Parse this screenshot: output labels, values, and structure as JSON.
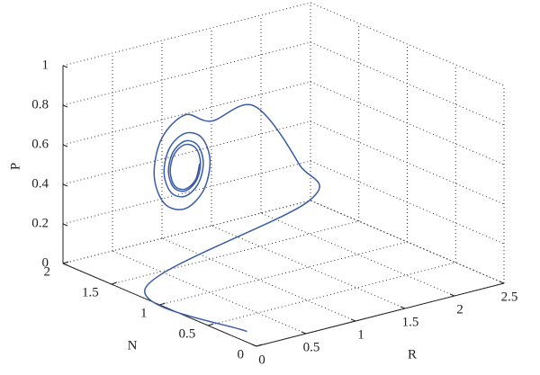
{
  "chart_data": {
    "type": "line3d",
    "xlabel": "R",
    "ylabel": "N",
    "zlabel": "P",
    "xlim": [
      0,
      2.5
    ],
    "xticks": [
      0,
      0.5,
      1,
      1.5,
      2,
      2.5
    ],
    "ylim": [
      0,
      2
    ],
    "yticks": [
      0,
      0.5,
      1,
      1.5,
      2
    ],
    "zlim": [
      0,
      1
    ],
    "zticks": [
      0,
      0.2,
      0.4,
      0.6,
      0.8,
      1
    ],
    "grid": true,
    "color": "#3a5ba8",
    "x": [
      0.1,
      0.1,
      1.75,
      1.65,
      1.2,
      0.766,
      0.5,
      0.265,
      0.188,
      0.291,
      0.5,
      0.687,
      0.752,
      0.67,
      0.5,
      0.344,
      0.288,
      0.356,
      0.5,
      0.633,
      0.684,
      0.627,
      0.5,
      0.378,
      0.332,
      0.384,
      0.5,
      0.612,
      0.656,
      0.609,
      0.5,
      0.393,
      0.35,
      0.394,
      0.5,
      0.605,
      0.648
    ],
    "y": [
      0.2,
      1.25,
      1.25,
      1.25,
      1.25,
      1.25,
      1.25,
      1.25,
      1.25,
      1.25,
      1.25,
      1.25,
      1.25,
      1.25,
      1.25,
      1.25,
      1.25,
      1.25,
      1.25,
      1.25,
      1.25,
      1.25,
      1.25,
      1.25,
      1.25,
      1.25,
      1.25,
      1.25,
      1.25,
      1.25,
      1.25,
      1.25,
      1.25,
      1.25,
      1.25,
      1.25,
      1.25
    ],
    "z": [
      0.02,
      0.02,
      0.25,
      0.45,
      0.8,
      0.779,
      0.844,
      0.756,
      0.58,
      0.423,
      0.37,
      0.44,
      0.58,
      0.707,
      0.751,
      0.697,
      0.58,
      0.472,
      0.433,
      0.48,
      0.58,
      0.675,
      0.712,
      0.671,
      0.58,
      0.493,
      0.46,
      0.496,
      0.58,
      0.662,
      0.694,
      0.661,
      0.58,
      0.5,
      0.469,
      0.502,
      0.58
    ]
  }
}
